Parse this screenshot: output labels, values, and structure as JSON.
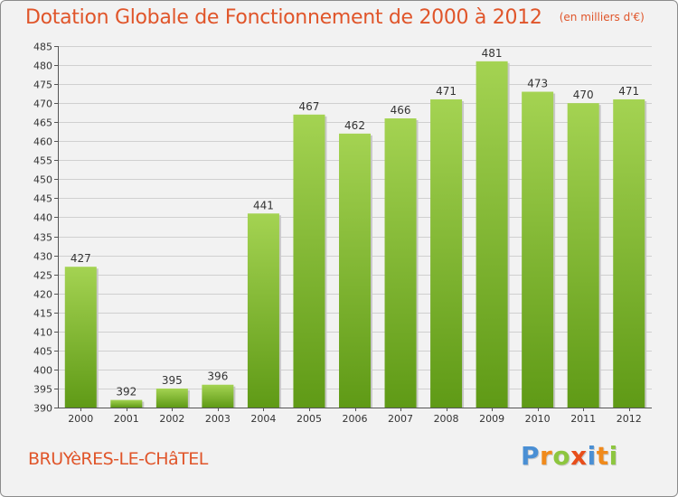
{
  "title": {
    "main": "Dotation Globale de Fonctionnement de 2000 à 2012",
    "unit": "(en milliers d'€)"
  },
  "commune": "BRUYèRES-LE-CHâTEL",
  "logo": {
    "text": "Proxiti",
    "letters": [
      {
        "char": "P",
        "color": "#4a8fd4"
      },
      {
        "char": "r",
        "color": "#f08a1c"
      },
      {
        "char": "o",
        "color": "#8dc63f"
      },
      {
        "char": "x",
        "color": "#e84e1b"
      },
      {
        "char": "i",
        "color": "#4a8fd4"
      },
      {
        "char": "t",
        "color": "#f08a1c"
      },
      {
        "char": "i",
        "color": "#8dc63f"
      }
    ]
  },
  "colors": {
    "title": "#e0552a",
    "bar_light": "#a4d352",
    "bar_dark": "#5f9a16",
    "grid": "#d0d0d0",
    "axis": "#555555"
  },
  "chart_data": {
    "type": "bar",
    "title": "Dotation Globale de Fonctionnement de 2000 à 2012",
    "subtitle": "(en milliers d'€)",
    "xlabel": "",
    "ylabel": "",
    "categories": [
      "2000",
      "2001",
      "2002",
      "2003",
      "2004",
      "2005",
      "2006",
      "2007",
      "2008",
      "2009",
      "2010",
      "2011",
      "2012"
    ],
    "values": [
      427,
      392,
      395,
      396,
      441,
      467,
      462,
      466,
      471,
      481,
      473,
      470,
      471
    ],
    "ylim": [
      390,
      485
    ],
    "yticks": [
      390,
      395,
      400,
      405,
      410,
      415,
      420,
      425,
      430,
      435,
      440,
      445,
      450,
      455,
      460,
      465,
      470,
      475,
      480,
      485
    ],
    "grid": true
  }
}
